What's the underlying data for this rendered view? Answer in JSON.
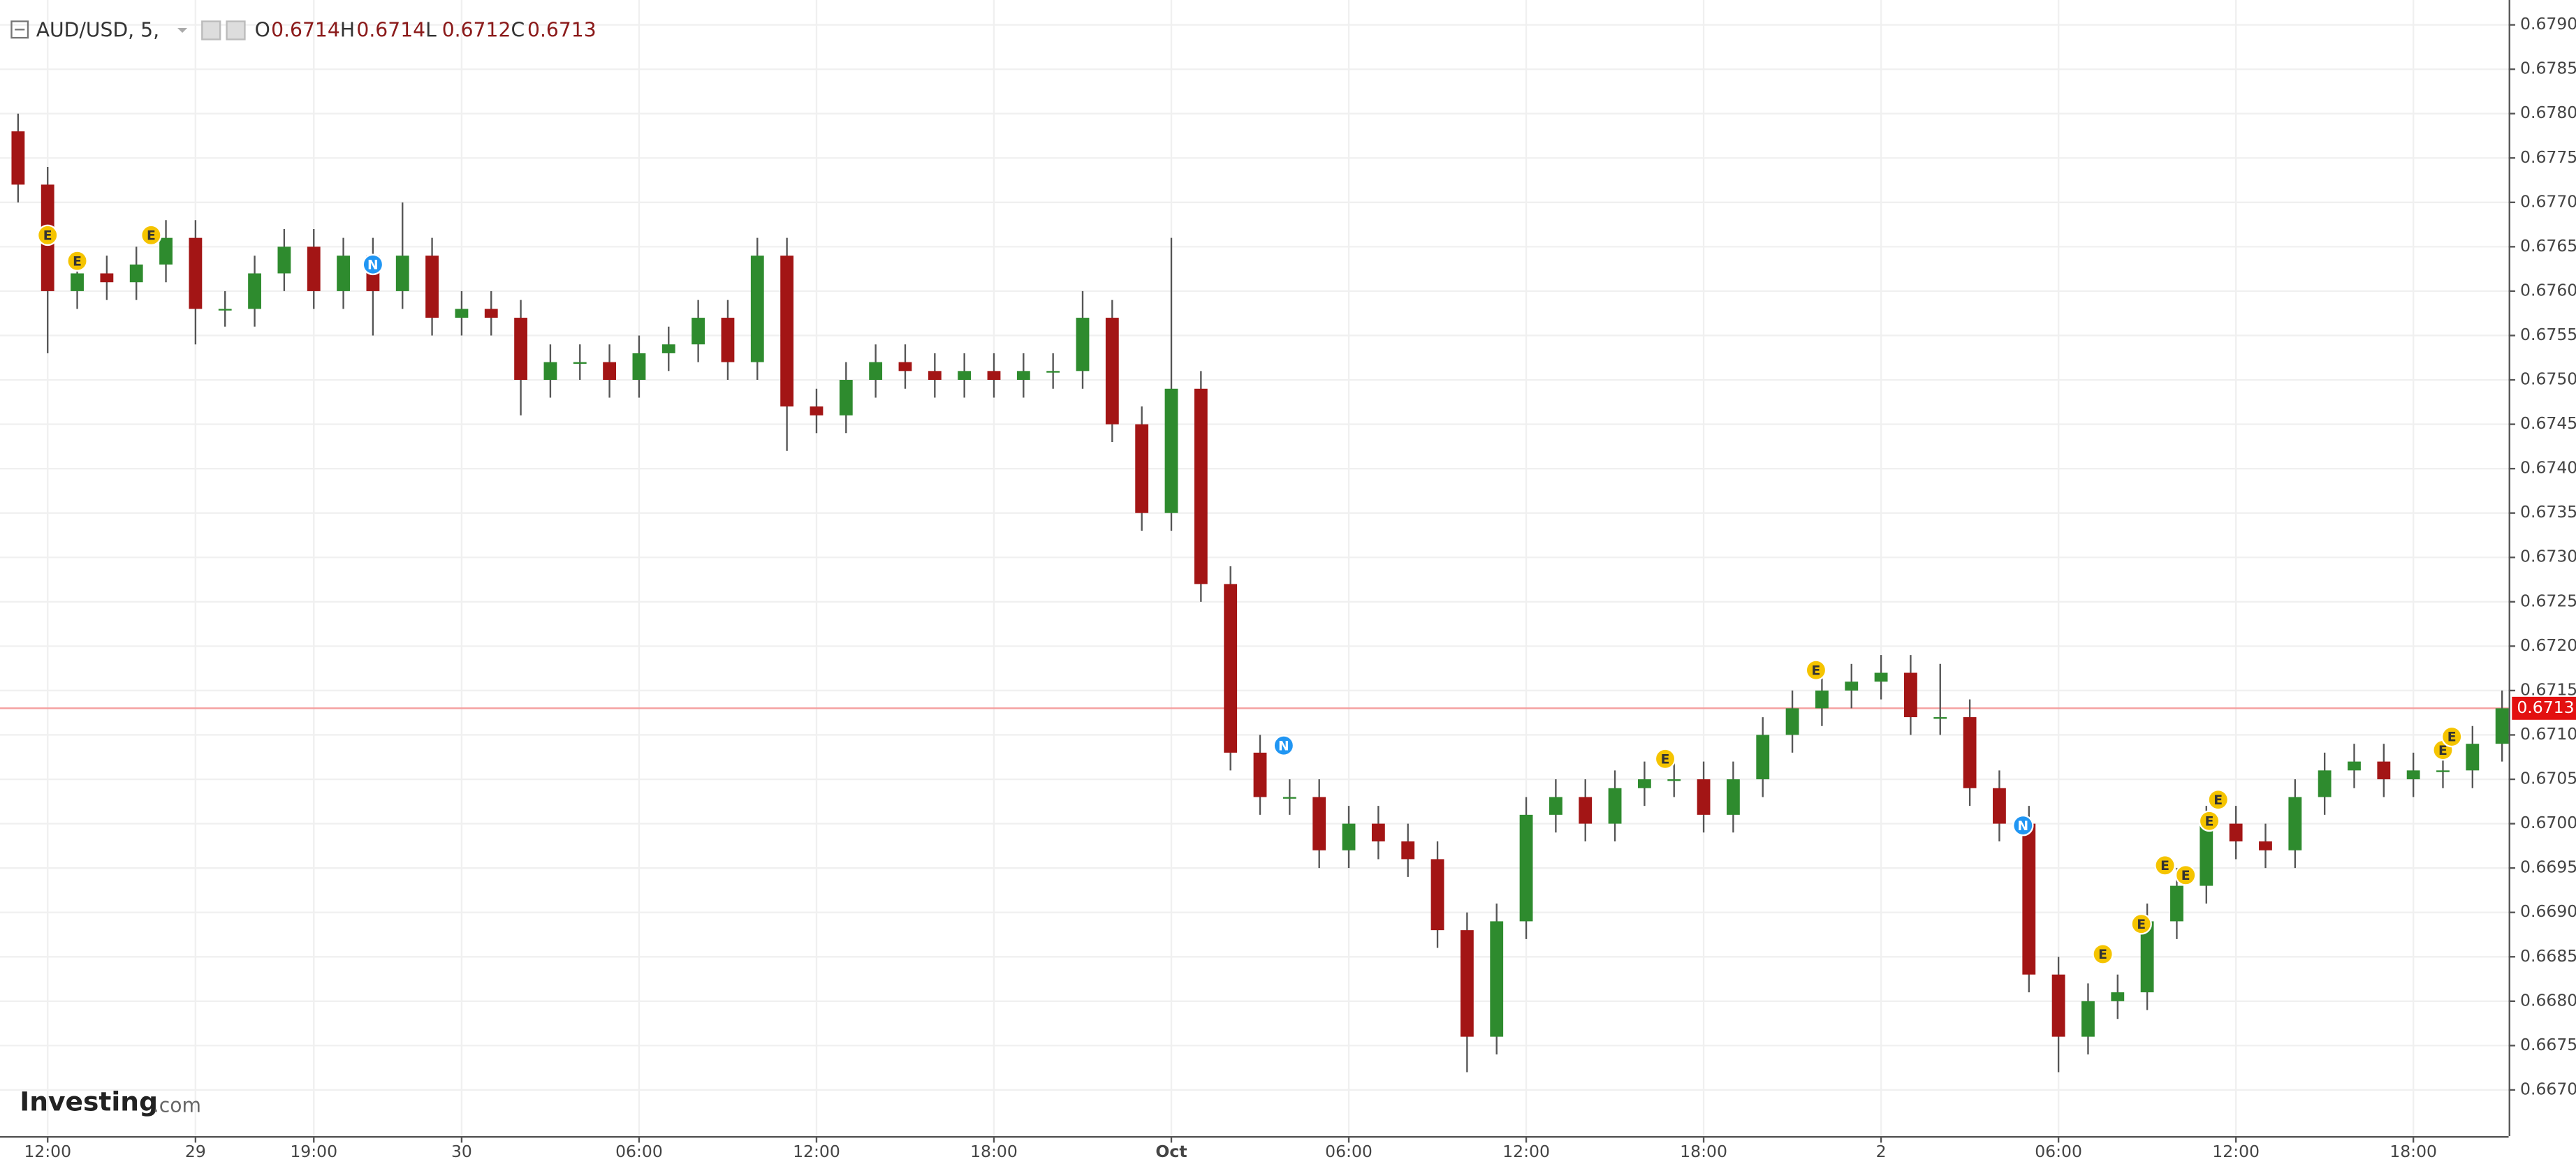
{
  "chart_data": {
    "type": "candlestick",
    "title": "AUD/USD, 5,",
    "ohlc": [
      {
        "label": "O",
        "value": 0.6714
      },
      {
        "label": "H",
        "value": 0.6714
      },
      {
        "label": "L",
        "value": 0.6712
      },
      {
        "label": "C",
        "value": 0.6713
      }
    ],
    "watermark": [
      "Investing",
      ".com"
    ],
    "last_price": 0.6713,
    "up_color": "#2e8b2e",
    "down_color": "#a31515",
    "grid": true,
    "categories": [
      null,
      "12:00",
      null,
      null,
      null,
      null,
      "29",
      null,
      null,
      null,
      "19:00",
      null,
      null,
      null,
      null,
      "30",
      null,
      null,
      null,
      null,
      null,
      "06:00",
      null,
      null,
      null,
      null,
      null,
      "12:00",
      null,
      null,
      null,
      null,
      null,
      "18:00",
      null,
      null,
      null,
      null,
      null,
      "Oct",
      null,
      null,
      null,
      null,
      null,
      "06:00",
      null,
      null,
      null,
      null,
      null,
      "12:00",
      null,
      null,
      null,
      null,
      null,
      "18:00",
      null,
      null,
      null,
      null,
      null,
      "2",
      null,
      null,
      null,
      null,
      null,
      "06:00",
      null,
      null,
      null,
      null,
      null,
      "12:00",
      null,
      null,
      null,
      null,
      null,
      "18:00",
      null,
      null,
      null
    ],
    "open": [
      0.6778,
      0.6772,
      0.676,
      0.6762,
      0.6761,
      0.6763,
      0.6766,
      0.6758,
      0.6758,
      0.6762,
      0.6765,
      0.676,
      0.6764,
      0.676,
      0.6764,
      0.6757,
      0.6758,
      0.6757,
      0.675,
      0.6752,
      0.6752,
      0.675,
      0.6753,
      0.6754,
      0.6757,
      0.6752,
      0.6764,
      0.6747,
      0.6746,
      0.675,
      0.6752,
      0.6751,
      0.675,
      0.6751,
      0.675,
      0.6751,
      0.6751,
      0.6757,
      0.6745,
      0.6735,
      0.6749,
      0.6727,
      0.6708,
      0.6703,
      0.6703,
      0.6697,
      0.67,
      0.6698,
      0.6696,
      0.6688,
      0.6676,
      0.6689,
      0.6701,
      0.6703,
      0.67,
      0.6704,
      0.6705,
      0.6705,
      0.6701,
      0.6705,
      0.671,
      0.6713,
      0.6715,
      0.6716,
      0.6717,
      0.6712,
      0.6712,
      0.6704,
      0.67,
      0.6683,
      0.6676,
      0.668,
      0.6681,
      0.6689,
      0.6693,
      0.67,
      0.6698,
      0.6697,
      0.6703,
      0.6706,
      0.6707,
      0.6705,
      0.6706,
      0.6706,
      0.6709
    ],
    "high": [
      0.678,
      0.6774,
      0.6764,
      0.6764,
      0.6765,
      0.6768,
      0.6768,
      0.676,
      0.6764,
      0.6767,
      0.6767,
      0.6766,
      0.6766,
      0.677,
      0.6766,
      0.676,
      0.676,
      0.6759,
      0.6754,
      0.6754,
      0.6754,
      0.6755,
      0.6756,
      0.6759,
      0.6759,
      0.6766,
      0.6766,
      0.6749,
      0.6752,
      0.6754,
      0.6754,
      0.6753,
      0.6753,
      0.6753,
      0.6753,
      0.6753,
      0.676,
      0.6759,
      0.6747,
      0.6766,
      0.6751,
      0.6729,
      0.671,
      0.6705,
      0.6705,
      0.6702,
      0.6702,
      0.67,
      0.6698,
      0.669,
      0.6691,
      0.6703,
      0.6705,
      0.6705,
      0.6706,
      0.6707,
      0.6707,
      0.6707,
      0.6707,
      0.6712,
      0.6715,
      0.6717,
      0.6718,
      0.6719,
      0.6719,
      0.6718,
      0.6714,
      0.6706,
      0.6702,
      0.6685,
      0.6682,
      0.6683,
      0.6691,
      0.6695,
      0.6702,
      0.6702,
      0.67,
      0.6705,
      0.6708,
      0.6709,
      0.6709,
      0.6708,
      0.6708,
      0.6711,
      0.6715
    ],
    "low": [
      0.677,
      0.6753,
      0.6758,
      0.6759,
      0.6759,
      0.6761,
      0.6754,
      0.6756,
      0.6756,
      0.676,
      0.6758,
      0.6758,
      0.6755,
      0.6758,
      0.6755,
      0.6755,
      0.6755,
      0.6746,
      0.6748,
      0.675,
      0.6748,
      0.6748,
      0.6751,
      0.6752,
      0.675,
      0.675,
      0.6742,
      0.6744,
      0.6744,
      0.6748,
      0.6749,
      0.6748,
      0.6748,
      0.6748,
      0.6748,
      0.6749,
      0.6749,
      0.6743,
      0.6733,
      0.6733,
      0.6725,
      0.6706,
      0.6701,
      0.6701,
      0.6695,
      0.6695,
      0.6696,
      0.6694,
      0.6686,
      0.6672,
      0.6674,
      0.6687,
      0.6699,
      0.6698,
      0.6698,
      0.6702,
      0.6703,
      0.6699,
      0.6699,
      0.6703,
      0.6708,
      0.6711,
      0.6713,
      0.6714,
      0.671,
      0.671,
      0.6702,
      0.6698,
      0.6681,
      0.6672,
      0.6674,
      0.6678,
      0.6679,
      0.6687,
      0.6691,
      0.6696,
      0.6695,
      0.6695,
      0.6701,
      0.6704,
      0.6703,
      0.6703,
      0.6704,
      0.6704,
      0.6707
    ],
    "close": [
      0.6772,
      0.676,
      0.6762,
      0.6761,
      0.6763,
      0.6766,
      0.6758,
      0.6758,
      0.6762,
      0.6765,
      0.676,
      0.6764,
      0.676,
      0.6764,
      0.6757,
      0.6758,
      0.6757,
      0.675,
      0.6752,
      0.6752,
      0.675,
      0.6753,
      0.6754,
      0.6757,
      0.6752,
      0.6764,
      0.6747,
      0.6746,
      0.675,
      0.6752,
      0.6751,
      0.675,
      0.6751,
      0.675,
      0.6751,
      0.6751,
      0.6757,
      0.6745,
      0.6735,
      0.6749,
      0.6727,
      0.6708,
      0.6703,
      0.6703,
      0.6697,
      0.67,
      0.6698,
      0.6696,
      0.6688,
      0.6676,
      0.6689,
      0.6701,
      0.6703,
      0.67,
      0.6704,
      0.6705,
      0.6705,
      0.6701,
      0.6705,
      0.671,
      0.6713,
      0.6715,
      0.6716,
      0.6717,
      0.6712,
      0.6712,
      0.6704,
      0.67,
      0.6683,
      0.6676,
      0.668,
      0.6681,
      0.6689,
      0.6693,
      0.67,
      0.6698,
      0.6697,
      0.6703,
      0.6706,
      0.6707,
      0.6705,
      0.6706,
      0.6706,
      0.6709,
      0.6713
    ],
    "events": [
      {
        "label": "E",
        "index": 1.0,
        "price": 0.67663,
        "color": "#f5c400"
      },
      {
        "label": "E",
        "index": 2.0,
        "price": 0.67634,
        "color": "#f5c400"
      },
      {
        "label": "E",
        "index": 4.5,
        "price": 0.67663,
        "color": "#f5c400"
      },
      {
        "label": "N",
        "index": 12.0,
        "price": 0.6763,
        "color": "#2196f3"
      },
      {
        "label": "N",
        "index": 42.8,
        "price": 0.67088,
        "color": "#2196f3"
      },
      {
        "label": "E",
        "index": 55.7,
        "price": 0.67073,
        "color": "#f5c400"
      },
      {
        "label": "E",
        "index": 60.8,
        "price": 0.67173,
        "color": "#f5c400"
      },
      {
        "label": "N",
        "index": 67.8,
        "price": 0.66998,
        "color": "#2196f3"
      },
      {
        "label": "E",
        "index": 70.5,
        "price": 0.66853,
        "color": "#f5c400"
      },
      {
        "label": "E",
        "index": 71.8,
        "price": 0.66887,
        "color": "#f5c400"
      },
      {
        "label": "E",
        "index": 72.6,
        "price": 0.66953,
        "color": "#f5c400"
      },
      {
        "label": "E",
        "index": 73.3,
        "price": 0.66942,
        "color": "#f5c400"
      },
      {
        "label": "E",
        "index": 74.1,
        "price": 0.67003,
        "color": "#f5c400"
      },
      {
        "label": "E",
        "index": 74.4,
        "price": 0.67027,
        "color": "#f5c400"
      },
      {
        "label": "E",
        "index": 82.0,
        "price": 0.67083,
        "color": "#f5c400"
      },
      {
        "label": "E",
        "index": 82.3,
        "price": 0.67098,
        "color": "#f5c400"
      }
    ],
    "ylim": [
      0.66648,
      0.67928
    ],
    "yticks": [
      {
        "value": 0.667,
        "label": "0.6670"
      },
      0.6675,
      {
        "value": 0.668,
        "label": "0.6680"
      },
      0.6685,
      {
        "value": 0.669,
        "label": "0.6690"
      },
      0.6695,
      {
        "value": 0.67,
        "label": "0.6700"
      },
      0.6705,
      {
        "value": 0.671,
        "label": "0.6710"
      },
      0.6715,
      {
        "value": 0.672,
        "label": "0.6720"
      },
      0.6725,
      {
        "value": 0.673,
        "label": "0.6730"
      },
      0.6735,
      {
        "value": 0.674,
        "label": "0.6740"
      },
      0.6745,
      {
        "value": 0.675,
        "label": "0.6750"
      },
      0.6755,
      {
        "value": 0.676,
        "label": "0.6760"
      },
      0.6765,
      {
        "value": 0.677,
        "label": "0.6770"
      },
      0.6775,
      {
        "value": 0.678,
        "label": "0.6780"
      },
      0.6785,
      {
        "value": 0.679,
        "label": "0.6790"
      }
    ]
  }
}
